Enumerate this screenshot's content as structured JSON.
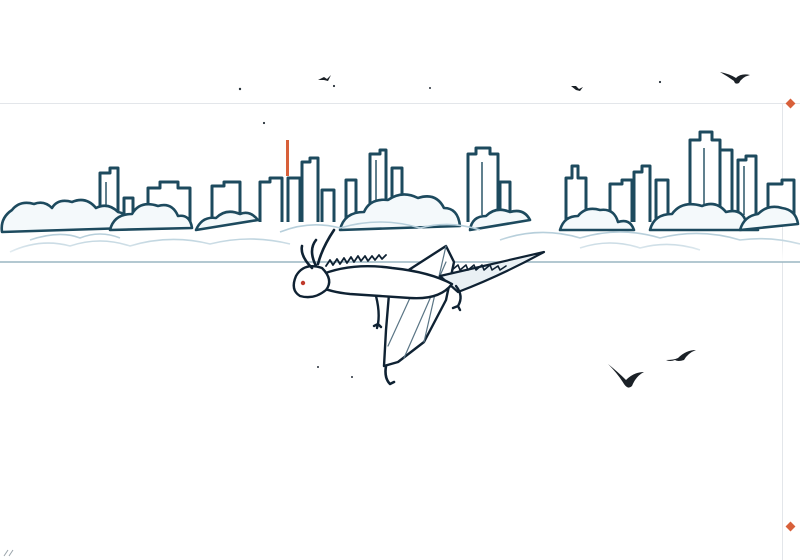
{
  "image": {
    "subject": "white-dragon-over-city-skyline",
    "colors": {
      "background": "#ffffff",
      "ink": "#0f2233",
      "teal": "#1d4a5e",
      "cloud_fill": "#f4f9fb",
      "accent": "#d8603a"
    },
    "elements": [
      {
        "name": "city-skyline",
        "icon": "skyline"
      },
      {
        "name": "cloud-bank",
        "icon": "clouds"
      },
      {
        "name": "flying-dragon",
        "icon": "dragon"
      },
      {
        "name": "bird",
        "icon": "bird"
      }
    ]
  }
}
